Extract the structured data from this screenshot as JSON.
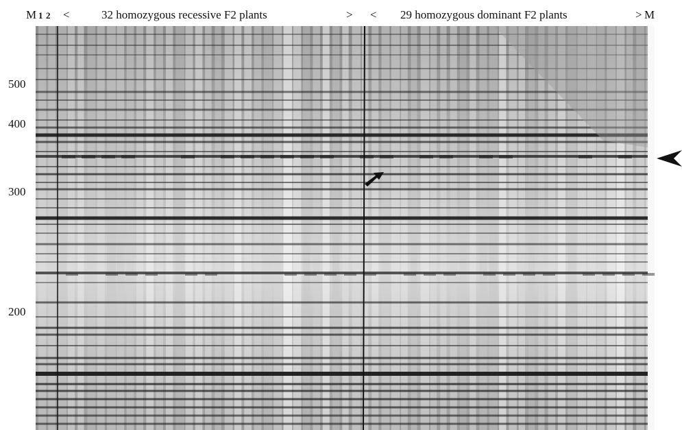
{
  "header": {
    "marker_left": "M",
    "lane_1": "1",
    "lane_2": "2",
    "group_1_open": "<",
    "group_1_label": "32 homozygous recessive F2 plants",
    "group_1_close": ">",
    "group_2_open": "<",
    "group_2_label": "29 homozygous dominant F2 plants",
    "group_2_close": ">",
    "marker_right": "M"
  },
  "size_labels": [
    "500",
    "400",
    "300",
    "200"
  ]
}
